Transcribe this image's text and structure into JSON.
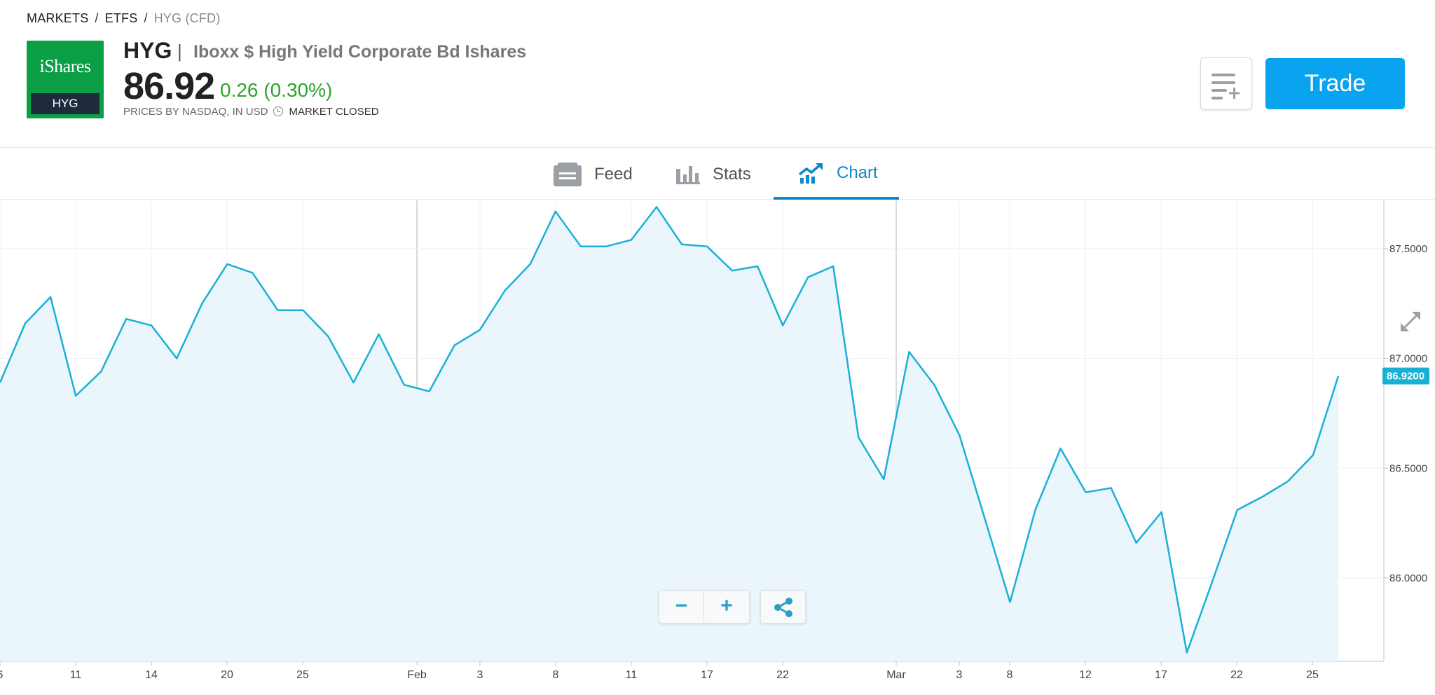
{
  "breadcrumb": [
    "MARKETS",
    "ETFS",
    "HYG (CFD)"
  ],
  "logo": {
    "brand": "iShares",
    "ticker": "HYG",
    "bg_color": "#0a9e45"
  },
  "instrument": {
    "symbol": "HYG",
    "name": "Iboxx $ High Yield Corporate Bd Ishares",
    "price": "86.92",
    "change": "0.26 (0.30%)",
    "source": "PRICES BY NASDAQ, IN USD",
    "market_status": "MARKET CLOSED"
  },
  "actions": {
    "watchlist_icon": "add-to-list-icon",
    "trade_label": "Trade",
    "trade_color": "#0aa3f0"
  },
  "tabs": [
    {
      "label": "Feed",
      "icon": "feed-icon"
    },
    {
      "label": "Stats",
      "icon": "bar-chart-icon"
    },
    {
      "label": "Chart",
      "icon": "trend-chart-icon",
      "active": true
    }
  ],
  "chart_controls": {
    "zoom_out": "−",
    "zoom_in": "+",
    "share_icon": "share-icon"
  },
  "chart_data": {
    "type": "area",
    "series": [
      {
        "values": [
          86.89,
          87.16,
          87.28,
          86.83,
          86.94,
          87.18,
          87.15,
          87.0,
          87.25,
          87.43,
          87.39,
          87.22,
          87.22,
          87.1,
          86.89,
          87.11,
          86.88,
          86.85,
          87.06,
          87.13,
          87.31,
          87.43,
          87.67,
          87.51,
          87.51,
          87.54,
          87.69,
          87.52,
          87.51,
          87.4,
          87.42,
          87.15,
          87.37,
          87.42,
          86.64,
          86.45,
          87.03,
          86.88,
          86.65,
          86.27,
          85.89,
          86.31,
          86.59,
          86.39,
          86.41,
          86.16,
          86.3,
          85.66,
          85.98,
          86.31,
          86.37,
          86.44,
          86.56,
          86.92
        ]
      }
    ],
    "x_tick_labels": [
      "6",
      "11",
      "14",
      "20",
      "25",
      "Feb",
      "3",
      "8",
      "11",
      "17",
      "22",
      "Mar",
      "3",
      "8",
      "12",
      "17",
      "22",
      "25"
    ],
    "y_tick_labels": [
      "87.5000",
      "87.0000",
      "86.5000",
      "86.0000"
    ],
    "ylim": [
      85.62,
      87.72
    ],
    "last_value_label": "86.9200",
    "line_color": "#1ab0d6",
    "fill_color": "#eaf6fb",
    "grid": true
  }
}
